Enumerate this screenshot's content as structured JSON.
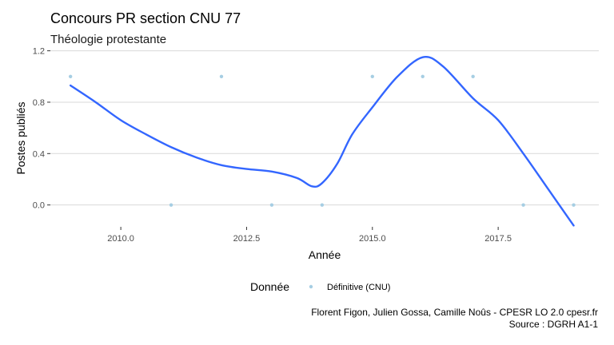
{
  "chart_data": {
    "type": "scatter",
    "title": "Concours PR section CNU 77",
    "subtitle": "Théologie protestante",
    "xlabel": "Année",
    "ylabel": "Postes publiés",
    "xlim": [
      2008.6,
      2019.5
    ],
    "ylim": [
      -0.17,
      1.21
    ],
    "x_ticks": [
      2010.0,
      2012.5,
      2015.0,
      2017.5
    ],
    "x_tick_labels": [
      "2010.0",
      "2012.5",
      "2015.0",
      "2017.5"
    ],
    "y_ticks": [
      0.0,
      0.4,
      0.8,
      1.2
    ],
    "y_tick_labels": [
      "0.0",
      "0.4",
      "0.8",
      "1.2"
    ],
    "grid": true,
    "legend": {
      "title": "Donnée",
      "position": "bottom",
      "entries": [
        "Définitive (CNU)"
      ]
    },
    "series": [
      {
        "name": "Définitive (CNU)",
        "kind": "points",
        "color": "#a6cee3",
        "points": [
          {
            "x": 2009,
            "y": 1
          },
          {
            "x": 2011,
            "y": 0
          },
          {
            "x": 2012,
            "y": 1
          },
          {
            "x": 2013,
            "y": 0
          },
          {
            "x": 2014,
            "y": 0
          },
          {
            "x": 2015,
            "y": 1
          },
          {
            "x": 2016,
            "y": 1
          },
          {
            "x": 2017,
            "y": 1
          },
          {
            "x": 2018,
            "y": 0
          },
          {
            "x": 2019,
            "y": 0
          }
        ]
      },
      {
        "kind": "smooth",
        "color": "#3366ff",
        "points": [
          {
            "x": 2009.0,
            "y": 0.93
          },
          {
            "x": 2009.5,
            "y": 0.8
          },
          {
            "x": 2010.0,
            "y": 0.66
          },
          {
            "x": 2010.5,
            "y": 0.55
          },
          {
            "x": 2011.0,
            "y": 0.45
          },
          {
            "x": 2011.5,
            "y": 0.37
          },
          {
            "x": 2012.0,
            "y": 0.31
          },
          {
            "x": 2012.5,
            "y": 0.28
          },
          {
            "x": 2013.0,
            "y": 0.26
          },
          {
            "x": 2013.5,
            "y": 0.21
          },
          {
            "x": 2013.8,
            "y": 0.145
          },
          {
            "x": 2014.0,
            "y": 0.17
          },
          {
            "x": 2014.3,
            "y": 0.32
          },
          {
            "x": 2014.6,
            "y": 0.55
          },
          {
            "x": 2015.0,
            "y": 0.76
          },
          {
            "x": 2015.5,
            "y": 1.0
          },
          {
            "x": 2016.0,
            "y": 1.15
          },
          {
            "x": 2016.4,
            "y": 1.08
          },
          {
            "x": 2017.0,
            "y": 0.83
          },
          {
            "x": 2017.5,
            "y": 0.66
          },
          {
            "x": 2018.0,
            "y": 0.4
          },
          {
            "x": 2018.5,
            "y": 0.12
          },
          {
            "x": 2019.0,
            "y": -0.16
          }
        ]
      }
    ]
  },
  "caption": {
    "line1": "Florent Figon, Julien Gossa, Camille Noûs - CPESR LO 2.0 cpesr.fr",
    "line2": "Source : DGRH A1-1"
  }
}
